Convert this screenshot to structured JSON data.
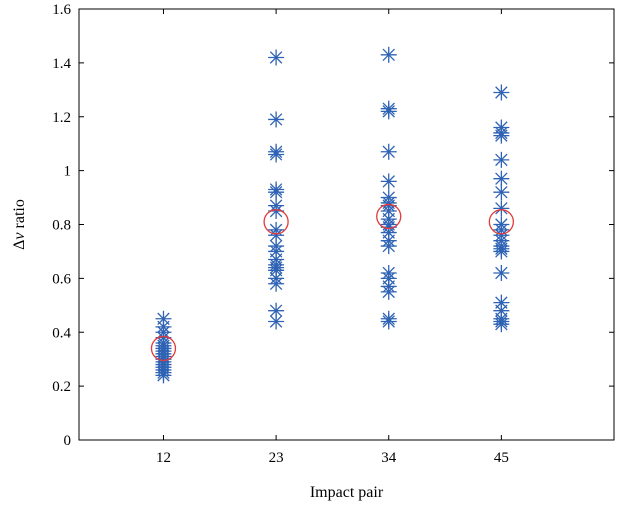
{
  "chart_data": {
    "type": "scatter",
    "title": "",
    "xlabel": "Impact pair",
    "ylabel": {
      "prefix": "Δ",
      "italic": "ν",
      "suffix": " ratio"
    },
    "categories": [
      "12",
      "23",
      "34",
      "45"
    ],
    "xlim": [
      0.25,
      5.0
    ],
    "ylim": [
      0,
      1.6
    ],
    "yticks": [
      0,
      0.2,
      0.4,
      0.6,
      0.8,
      1,
      1.2,
      1.4,
      1.6
    ],
    "ytick_labels": [
      "0",
      "0.2",
      "0.4",
      "0.6",
      "0.8",
      "1",
      "1.2",
      "1.4",
      "1.6"
    ],
    "grid": false,
    "series": [
      {
        "marker": "asterisk",
        "color": "#2f63b4",
        "points": [
          {
            "x": "12",
            "values": [
              0.45,
              0.42,
              0.4,
              0.38,
              0.36,
              0.35,
              0.34,
              0.33,
              0.32,
              0.31,
              0.3,
              0.29,
              0.28,
              0.27,
              0.26,
              0.25,
              0.24
            ]
          },
          {
            "x": "23",
            "values": [
              1.42,
              1.19,
              1.07,
              1.06,
              0.93,
              0.92,
              0.87,
              0.85,
              0.78,
              0.76,
              0.72,
              0.7,
              0.67,
              0.65,
              0.64,
              0.63,
              0.6,
              0.58,
              0.48,
              0.44
            ]
          },
          {
            "x": "34",
            "values": [
              1.43,
              1.23,
              1.22,
              1.07,
              0.96,
              0.9,
              0.88,
              0.87,
              0.85,
              0.82,
              0.8,
              0.79,
              0.77,
              0.74,
              0.72,
              0.62,
              0.6,
              0.57,
              0.55,
              0.45,
              0.44
            ]
          },
          {
            "x": "45",
            "values": [
              1.29,
              1.16,
              1.14,
              1.13,
              1.04,
              0.97,
              0.92,
              0.86,
              0.8,
              0.78,
              0.76,
              0.74,
              0.72,
              0.71,
              0.7,
              0.62,
              0.51,
              0.48,
              0.45,
              0.44,
              0.43
            ]
          }
        ]
      },
      {
        "marker": "circle",
        "color": "#e23a3a",
        "points": [
          {
            "x": "12",
            "values": [
              0.34
            ]
          },
          {
            "x": "23",
            "values": [
              0.81
            ]
          },
          {
            "x": "34",
            "values": [
              0.83
            ]
          },
          {
            "x": "45",
            "values": [
              0.81
            ]
          }
        ]
      }
    ]
  }
}
